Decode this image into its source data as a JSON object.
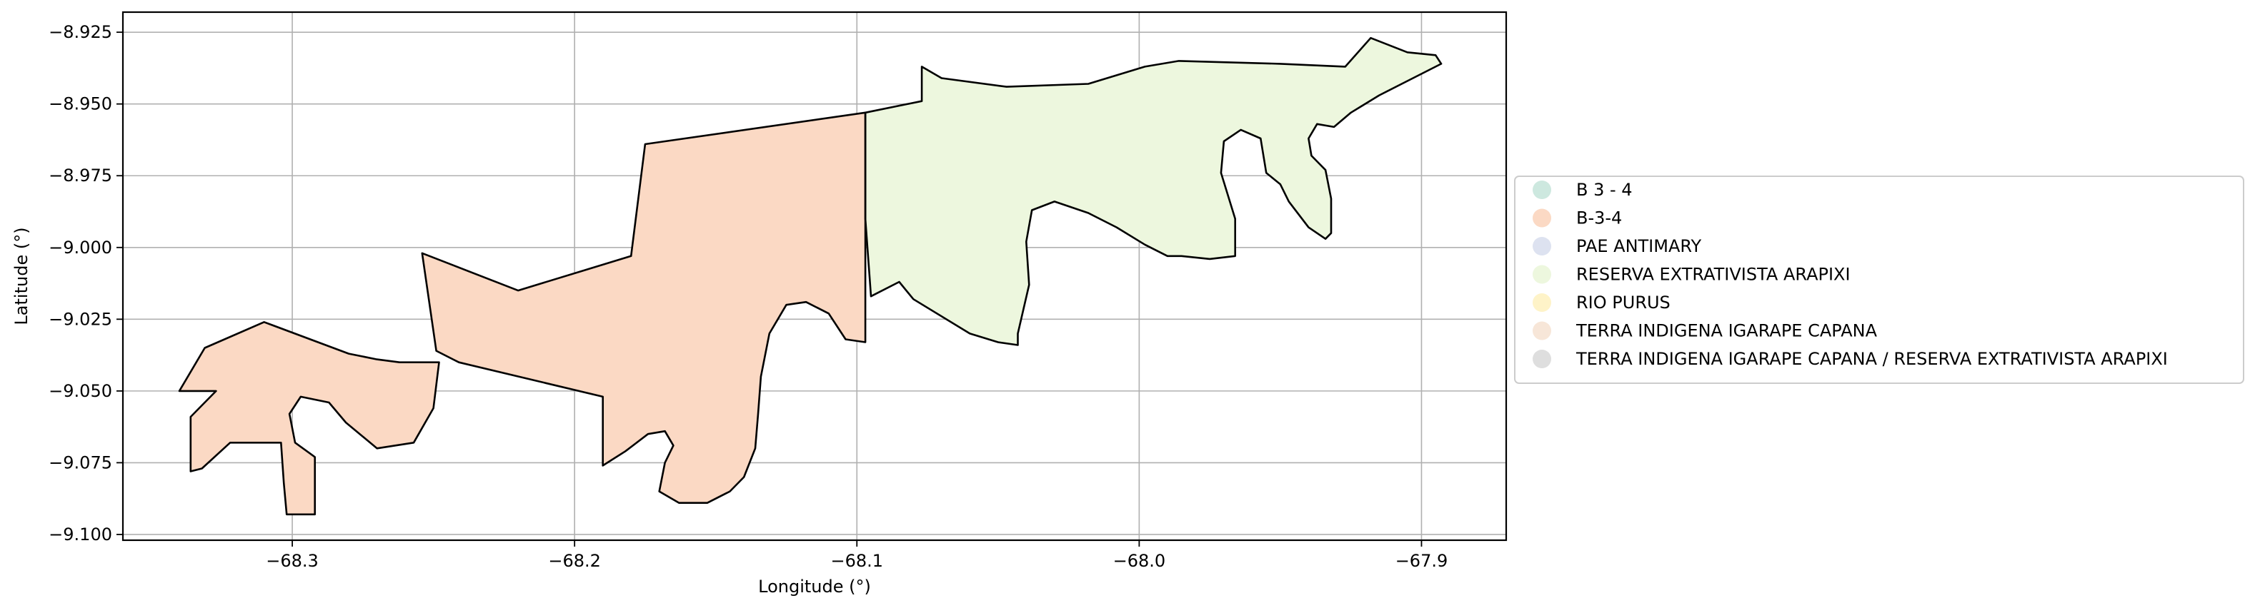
{
  "chart_data": {
    "type": "choropleth map",
    "title": "",
    "xlabel": "Longitude (°)",
    "ylabel": "Latitude (°)",
    "xlim": [
      -68.36,
      -67.87
    ],
    "ylim": [
      -9.102,
      -8.918
    ],
    "x_ticks": [
      -68.3,
      -68.2,
      -68.1,
      -68.0,
      -67.9
    ],
    "x_tick_labels": [
      "−68.3",
      "−68.2",
      "−68.1",
      "−68.0",
      "−67.9"
    ],
    "y_ticks": [
      -8.925,
      -8.95,
      -8.975,
      -9.0,
      -9.025,
      -9.05,
      -9.075,
      -9.1
    ],
    "y_tick_labels": [
      "−8.925",
      "−8.950",
      "−8.975",
      "−9.000",
      "−9.025",
      "−9.050",
      "−9.075",
      "−9.100"
    ],
    "grid": true,
    "legend_position": "right",
    "legend": [
      {
        "label": "B 3 - 4",
        "color": "#cde8df"
      },
      {
        "label": "B-3-4",
        "color": "#fbd9c4"
      },
      {
        "label": "PAE ANTIMARY",
        "color": "#dde2f0"
      },
      {
        "label": "RESERVA EXTRATIVISTA ARAPIXI",
        "color": "#edf7de"
      },
      {
        "label": "RIO PURUS",
        "color": "#fef3c8"
      },
      {
        "label": "TERRA INDIGENA IGARAPE CAPANA",
        "color": "#f7e6d8"
      },
      {
        "label": "TERRA INDIGENA IGARAPE CAPANA / RESERVA EXTRATIVISTA ARAPIXI",
        "color": "#dedede"
      }
    ],
    "regions": [
      {
        "name": "B-3-4",
        "color": "#fbd9c4",
        "coordinates": [
          [
            -68.097,
            -8.953
          ],
          [
            -68.175,
            -8.964
          ],
          [
            -68.18,
            -9.003
          ],
          [
            -68.22,
            -9.015
          ],
          [
            -68.254,
            -9.002
          ],
          [
            -68.249,
            -9.036
          ],
          [
            -68.241,
            -9.04
          ],
          [
            -68.19,
            -9.052
          ],
          [
            -68.19,
            -9.076
          ],
          [
            -68.182,
            -9.071
          ],
          [
            -68.174,
            -9.065
          ],
          [
            -68.168,
            -9.064
          ],
          [
            -68.165,
            -9.069
          ],
          [
            -68.168,
            -9.075
          ],
          [
            -68.17,
            -9.085
          ],
          [
            -68.163,
            -9.089
          ],
          [
            -68.153,
            -9.089
          ],
          [
            -68.145,
            -9.085
          ],
          [
            -68.14,
            -9.08
          ],
          [
            -68.136,
            -9.07
          ],
          [
            -68.135,
            -9.058
          ],
          [
            -68.134,
            -9.045
          ],
          [
            -68.131,
            -9.03
          ],
          [
            -68.125,
            -9.02
          ],
          [
            -68.118,
            -9.019
          ],
          [
            -68.11,
            -9.023
          ],
          [
            -68.104,
            -9.032
          ],
          [
            -68.097,
            -9.033
          ],
          [
            -68.097,
            -8.99
          ]
        ]
      },
      {
        "name": "B-3-4",
        "color": "#fbd9c4",
        "coordinates": [
          [
            -68.336,
            -9.059
          ],
          [
            -68.327,
            -9.05
          ],
          [
            -68.34,
            -9.05
          ],
          [
            -68.331,
            -9.035
          ],
          [
            -68.31,
            -9.026
          ],
          [
            -68.28,
            -9.037
          ],
          [
            -68.27,
            -9.039
          ],
          [
            -68.262,
            -9.04
          ],
          [
            -68.248,
            -9.04
          ],
          [
            -68.25,
            -9.056
          ],
          [
            -68.257,
            -9.068
          ],
          [
            -68.27,
            -9.07
          ],
          [
            -68.281,
            -9.061
          ],
          [
            -68.287,
            -9.054
          ],
          [
            -68.297,
            -9.052
          ],
          [
            -68.301,
            -9.058
          ],
          [
            -68.299,
            -9.068
          ],
          [
            -68.292,
            -9.073
          ],
          [
            -68.292,
            -9.093
          ],
          [
            -68.302,
            -9.093
          ],
          [
            -68.303,
            -9.082
          ],
          [
            -68.304,
            -9.068
          ],
          [
            -68.322,
            -9.068
          ],
          [
            -68.332,
            -9.077
          ],
          [
            -68.336,
            -9.078
          ]
        ]
      },
      {
        "name": "RESERVA EXTRATIVISTA ARAPIXI",
        "color": "#edf7de",
        "coordinates": [
          [
            -68.097,
            -8.953
          ],
          [
            -68.077,
            -8.949
          ],
          [
            -68.077,
            -8.937
          ],
          [
            -68.07,
            -8.941
          ],
          [
            -68.047,
            -8.944
          ],
          [
            -68.018,
            -8.943
          ],
          [
            -67.998,
            -8.937
          ],
          [
            -67.986,
            -8.935
          ],
          [
            -67.95,
            -8.936
          ],
          [
            -67.927,
            -8.937
          ],
          [
            -67.918,
            -8.927
          ],
          [
            -67.905,
            -8.932
          ],
          [
            -67.895,
            -8.933
          ],
          [
            -67.893,
            -8.936
          ],
          [
            -67.905,
            -8.942
          ],
          [
            -67.915,
            -8.947
          ],
          [
            -67.925,
            -8.953
          ],
          [
            -67.931,
            -8.958
          ],
          [
            -67.937,
            -8.957
          ],
          [
            -67.94,
            -8.962
          ],
          [
            -67.939,
            -8.968
          ],
          [
            -67.934,
            -8.973
          ],
          [
            -67.932,
            -8.983
          ],
          [
            -67.932,
            -8.995
          ],
          [
            -67.934,
            -8.997
          ],
          [
            -67.94,
            -8.993
          ],
          [
            -67.947,
            -8.984
          ],
          [
            -67.95,
            -8.978
          ],
          [
            -67.955,
            -8.974
          ],
          [
            -67.957,
            -8.962
          ],
          [
            -67.964,
            -8.959
          ],
          [
            -67.97,
            -8.963
          ],
          [
            -67.971,
            -8.974
          ],
          [
            -67.966,
            -8.99
          ],
          [
            -67.966,
            -9.003
          ],
          [
            -67.975,
            -9.004
          ],
          [
            -67.985,
            -9.003
          ],
          [
            -67.99,
            -9.003
          ],
          [
            -67.998,
            -8.999
          ],
          [
            -68.008,
            -8.993
          ],
          [
            -68.018,
            -8.988
          ],
          [
            -68.03,
            -8.984
          ],
          [
            -68.038,
            -8.987
          ],
          [
            -68.04,
            -8.998
          ],
          [
            -68.039,
            -9.013
          ],
          [
            -68.043,
            -9.03
          ],
          [
            -68.043,
            -9.034
          ],
          [
            -68.05,
            -9.033
          ],
          [
            -68.06,
            -9.03
          ],
          [
            -68.08,
            -9.018
          ],
          [
            -68.085,
            -9.012
          ],
          [
            -68.095,
            -9.017
          ],
          [
            -68.097,
            -8.99
          ]
        ]
      }
    ]
  }
}
